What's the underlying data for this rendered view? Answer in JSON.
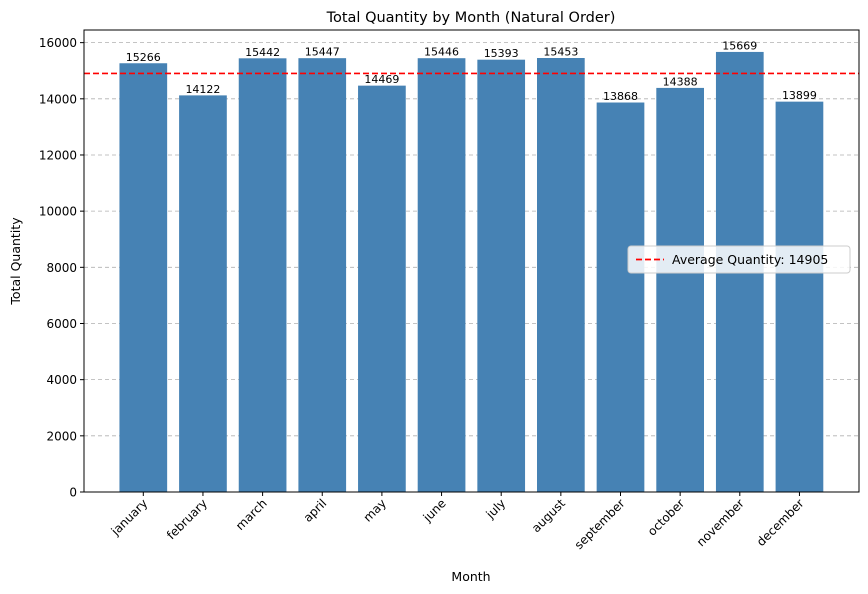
{
  "chart_data": {
    "type": "bar",
    "title": "Total Quantity by Month (Natural Order)",
    "xlabel": "Month",
    "ylabel": "Total Quantity",
    "categories": [
      "january",
      "february",
      "march",
      "april",
      "may",
      "june",
      "july",
      "august",
      "september",
      "october",
      "november",
      "december"
    ],
    "values": [
      15266,
      14122,
      15442,
      15447,
      14469,
      15446,
      15393,
      15453,
      13868,
      14388,
      15669,
      13899
    ],
    "ylim": [
      0,
      16450
    ],
    "yticks": [
      0,
      2000,
      4000,
      6000,
      8000,
      10000,
      12000,
      14000,
      16000
    ],
    "grid": "y-dashed",
    "bar_color": "#4682b4",
    "average_line": {
      "value": 14905,
      "label": "Average Quantity: 14905",
      "color": "#ff0000",
      "style": "dashed"
    },
    "legend_placement": "center-right"
  }
}
